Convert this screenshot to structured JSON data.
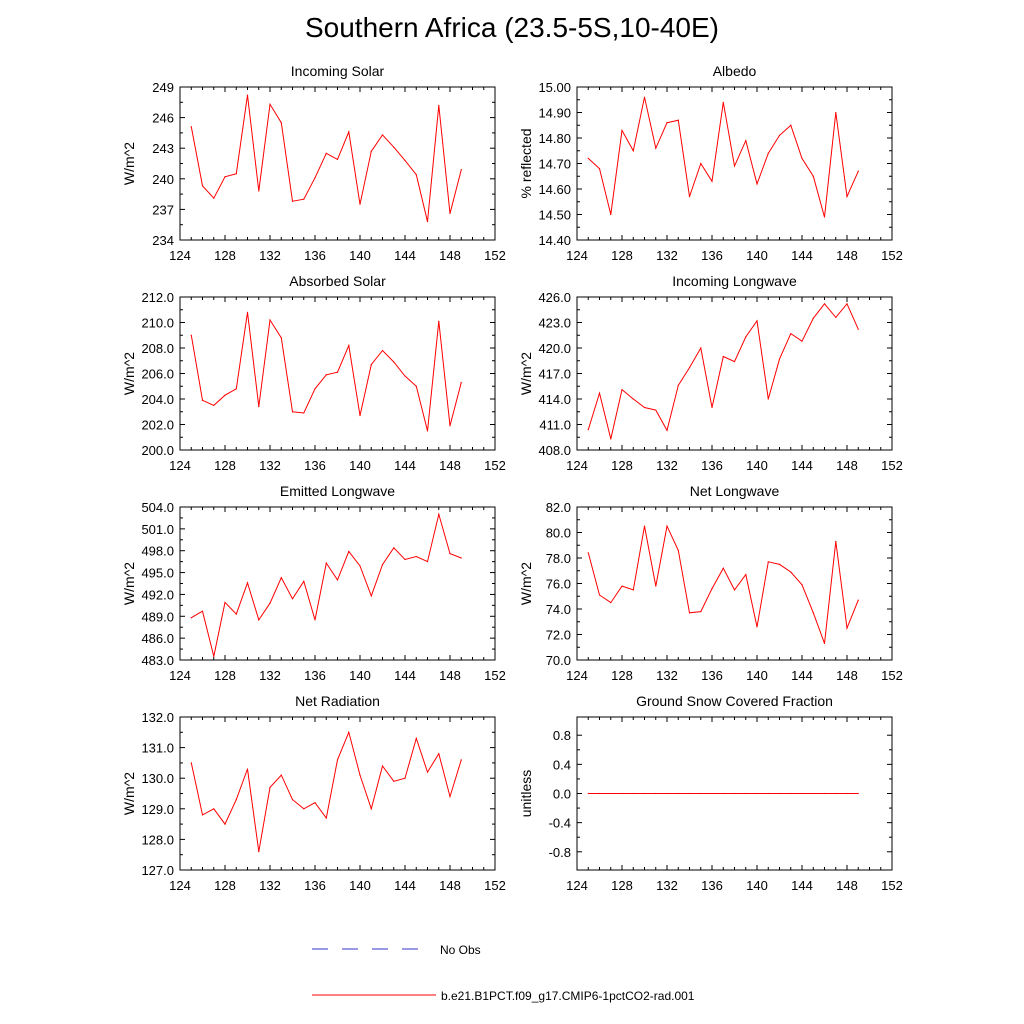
{
  "title": "Southern Africa (23.5-5S,10-40E)",
  "colors": {
    "series": "#ff0000",
    "obs": "#3333cc",
    "axis": "#000000"
  },
  "legend": {
    "items": [
      {
        "label": "No Obs",
        "style": "dashed",
        "color": "#3333cc"
      },
      {
        "label": "b.e21.B1PCT.f09_g17.CMIP6-1pctCO2-rad.001",
        "style": "solid",
        "color": "#ff0000"
      }
    ]
  },
  "chart_data": [
    {
      "type": "line",
      "title": "Incoming Solar",
      "ylabel": "W/m^2",
      "xlim": [
        124,
        152
      ],
      "xticks": [
        124,
        128,
        132,
        136,
        140,
        144,
        148,
        152
      ],
      "ylim": [
        234,
        249
      ],
      "yticks": [
        "234",
        "237",
        "240",
        "243",
        "246",
        "249"
      ],
      "x": [
        125,
        126,
        127,
        128,
        129,
        130,
        131,
        132,
        133,
        134,
        135,
        136,
        137,
        138,
        139,
        140,
        141,
        142,
        143,
        144,
        145,
        146,
        147,
        148,
        149
      ],
      "values": [
        245.1,
        239.3,
        238.1,
        240.2,
        240.5,
        248.2,
        238.8,
        247.3,
        245.5,
        237.8,
        238.0,
        240.1,
        242.5,
        241.9,
        244.6,
        237.5,
        242.7,
        244.3,
        243.1,
        241.8,
        240.4,
        235.8,
        247.2,
        236.6,
        240.9
      ]
    },
    {
      "type": "line",
      "title": "Albedo",
      "ylabel": "% reflected",
      "xlim": [
        124,
        152
      ],
      "xticks": [
        124,
        128,
        132,
        136,
        140,
        144,
        148,
        152
      ],
      "ylim": [
        14.4,
        15.0
      ],
      "yticks": [
        "14.40",
        "14.50",
        "14.60",
        "14.70",
        "14.80",
        "14.90",
        "15.00"
      ],
      "x": [
        125,
        126,
        127,
        128,
        129,
        130,
        131,
        132,
        133,
        134,
        135,
        136,
        137,
        138,
        139,
        140,
        141,
        142,
        143,
        144,
        145,
        146,
        147,
        148,
        149
      ],
      "values": [
        14.72,
        14.68,
        14.5,
        14.83,
        14.75,
        14.96,
        14.76,
        14.86,
        14.87,
        14.57,
        14.7,
        14.63,
        14.94,
        14.69,
        14.79,
        14.62,
        14.74,
        14.81,
        14.85,
        14.72,
        14.65,
        14.49,
        14.9,
        14.57,
        14.67
      ]
    },
    {
      "type": "line",
      "title": "Absorbed Solar",
      "ylabel": "W/m^2",
      "xlim": [
        124,
        152
      ],
      "xticks": [
        124,
        128,
        132,
        136,
        140,
        144,
        148,
        152
      ],
      "ylim": [
        200.0,
        212.0
      ],
      "yticks": [
        "200.0",
        "202.0",
        "204.0",
        "206.0",
        "208.0",
        "210.0",
        "212.0"
      ],
      "x": [
        125,
        126,
        127,
        128,
        129,
        130,
        131,
        132,
        133,
        134,
        135,
        136,
        137,
        138,
        139,
        140,
        141,
        142,
        143,
        144,
        145,
        146,
        147,
        148,
        149
      ],
      "values": [
        209.0,
        203.9,
        203.5,
        204.3,
        204.8,
        210.8,
        203.4,
        210.2,
        208.8,
        203.0,
        202.9,
        204.8,
        205.9,
        206.1,
        208.2,
        202.7,
        206.7,
        207.8,
        206.9,
        205.8,
        205.0,
        201.5,
        210.1,
        201.9,
        205.3
      ]
    },
    {
      "type": "line",
      "title": "Incoming Longwave",
      "ylabel": "W/m^2",
      "xlim": [
        124,
        152
      ],
      "xticks": [
        124,
        128,
        132,
        136,
        140,
        144,
        148,
        152
      ],
      "ylim": [
        408.0,
        426.0
      ],
      "yticks": [
        "408.0",
        "411.0",
        "414.0",
        "417.0",
        "420.0",
        "423.0",
        "426.0"
      ],
      "x": [
        125,
        126,
        127,
        128,
        129,
        130,
        131,
        132,
        133,
        134,
        135,
        136,
        137,
        138,
        139,
        140,
        141,
        142,
        143,
        144,
        145,
        146,
        147,
        148,
        149
      ],
      "values": [
        410.4,
        414.7,
        409.3,
        415.1,
        414.0,
        413.0,
        412.7,
        410.3,
        415.6,
        417.7,
        420.0,
        413.0,
        419.0,
        418.4,
        421.3,
        423.2,
        414.0,
        418.7,
        421.7,
        420.8,
        423.5,
        425.2,
        423.6,
        425.2,
        422.2
      ]
    },
    {
      "type": "line",
      "title": "Emitted Longwave",
      "ylabel": "W/m^2",
      "xlim": [
        124,
        152
      ],
      "xticks": [
        124,
        128,
        132,
        136,
        140,
        144,
        148,
        152
      ],
      "ylim": [
        483.0,
        504.0
      ],
      "yticks": [
        "483.0",
        "486.0",
        "489.0",
        "492.0",
        "495.0",
        "498.0",
        "501.0",
        "504.0"
      ],
      "x": [
        125,
        126,
        127,
        128,
        129,
        130,
        131,
        132,
        133,
        134,
        135,
        136,
        137,
        138,
        139,
        140,
        141,
        142,
        143,
        144,
        145,
        146,
        147,
        148,
        149
      ],
      "values": [
        488.8,
        489.7,
        483.5,
        490.9,
        489.3,
        493.6,
        488.5,
        490.8,
        494.3,
        491.4,
        493.8,
        488.5,
        496.3,
        494.0,
        497.9,
        495.9,
        491.8,
        496.1,
        498.4,
        496.8,
        497.2,
        496.5,
        503.0,
        497.6,
        497.0
      ]
    },
    {
      "type": "line",
      "title": "Net Longwave",
      "ylabel": "W/m^2",
      "xlim": [
        124,
        152
      ],
      "xticks": [
        124,
        128,
        132,
        136,
        140,
        144,
        148,
        152
      ],
      "ylim": [
        70.0,
        82.0
      ],
      "yticks": [
        "70.0",
        "72.0",
        "74.0",
        "76.0",
        "78.0",
        "80.0",
        "82.0"
      ],
      "x": [
        125,
        126,
        127,
        128,
        129,
        130,
        131,
        132,
        133,
        134,
        135,
        136,
        137,
        138,
        139,
        140,
        141,
        142,
        143,
        144,
        145,
        146,
        147,
        148,
        149
      ],
      "values": [
        78.4,
        75.1,
        74.5,
        75.8,
        75.5,
        80.5,
        75.8,
        80.5,
        78.6,
        73.7,
        73.8,
        75.6,
        77.2,
        75.5,
        76.7,
        72.6,
        77.7,
        77.5,
        76.9,
        75.9,
        73.7,
        71.3,
        79.3,
        72.5,
        74.7
      ]
    },
    {
      "type": "line",
      "title": "Net Radiation",
      "ylabel": "W/m^2",
      "xlim": [
        124,
        152
      ],
      "xticks": [
        124,
        128,
        132,
        136,
        140,
        144,
        148,
        152
      ],
      "ylim": [
        127.0,
        132.0
      ],
      "yticks": [
        "127.0",
        "128.0",
        "129.0",
        "130.0",
        "131.0",
        "132.0"
      ],
      "x": [
        125,
        126,
        127,
        128,
        129,
        130,
        131,
        132,
        133,
        134,
        135,
        136,
        137,
        138,
        139,
        140,
        141,
        142,
        143,
        144,
        145,
        146,
        147,
        148,
        149
      ],
      "values": [
        130.5,
        128.8,
        129.0,
        128.5,
        129.3,
        130.3,
        127.6,
        129.7,
        130.1,
        129.3,
        129.0,
        129.2,
        128.7,
        130.6,
        131.5,
        130.1,
        129.0,
        130.4,
        129.9,
        130.0,
        131.3,
        130.2,
        130.8,
        129.4,
        130.6
      ]
    },
    {
      "type": "line",
      "title": "Ground Snow Covered Fraction",
      "ylabel": "unitless",
      "xlim": [
        124,
        152
      ],
      "xticks": [
        124,
        128,
        132,
        136,
        140,
        144,
        148,
        152
      ],
      "ylim": [
        -1.05,
        1.05
      ],
      "yticks": [
        "-0.8",
        "-0.4",
        "0.0",
        "0.4",
        "0.8"
      ],
      "ytick_values": [
        -0.8,
        -0.4,
        0.0,
        0.4,
        0.8
      ],
      "x": [
        125,
        126,
        127,
        128,
        129,
        130,
        131,
        132,
        133,
        134,
        135,
        136,
        137,
        138,
        139,
        140,
        141,
        142,
        143,
        144,
        145,
        146,
        147,
        148,
        149
      ],
      "values": [
        0,
        0,
        0,
        0,
        0,
        0,
        0,
        0,
        0,
        0,
        0,
        0,
        0,
        0,
        0,
        0,
        0,
        0,
        0,
        0,
        0,
        0,
        0,
        0,
        0
      ]
    }
  ]
}
